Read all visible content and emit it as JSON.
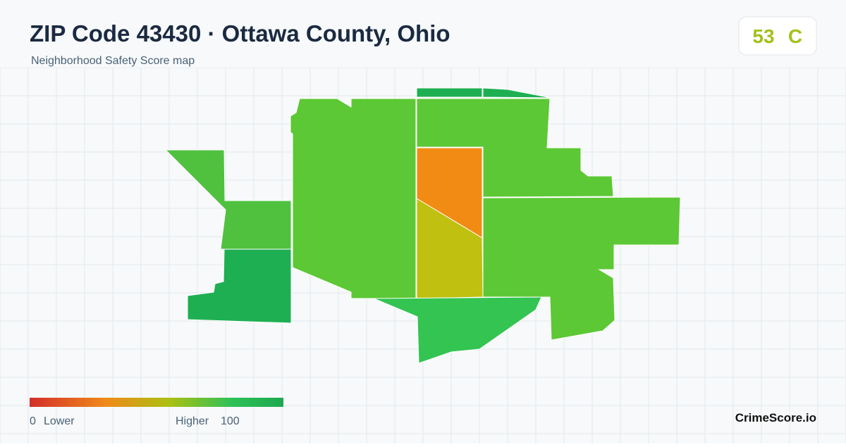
{
  "header": {
    "title": "ZIP Code 43430 · Ottawa County, Ohio",
    "subtitle": "Neighborhood Safety Score map"
  },
  "score": {
    "value": "53",
    "grade": "C"
  },
  "legend": {
    "min": "0",
    "min_label": "Lower",
    "max_label": "Higher",
    "max": "100"
  },
  "brand": "CrimeScore.io"
}
